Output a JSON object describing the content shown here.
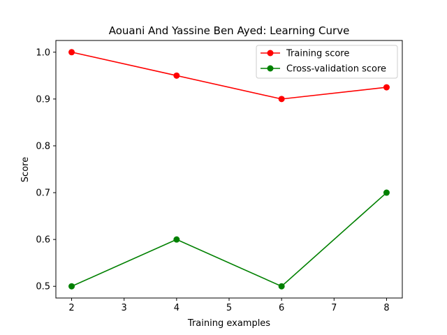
{
  "chart_data": {
    "type": "line",
    "title": "Aouani And Yassine Ben Ayed: Learning Curve",
    "xlabel": "Training examples",
    "ylabel": "Score",
    "xlim": [
      1.7,
      8.3
    ],
    "ylim": [
      0.475,
      1.025
    ],
    "xticks": [
      2,
      3,
      4,
      5,
      6,
      7,
      8
    ],
    "yticks": [
      0.5,
      0.6,
      0.7,
      0.8,
      0.9,
      1.0
    ],
    "ytick_labels": [
      "0.5",
      "0.6",
      "0.7",
      "0.8",
      "0.9",
      "1.0"
    ],
    "grid": false,
    "legend_position": "top-right",
    "series": [
      {
        "name": "Training score",
        "color": "#ff0000",
        "marker": "circle",
        "x": [
          2,
          4,
          6,
          8
        ],
        "y": [
          1.0,
          0.95,
          0.9,
          0.925
        ]
      },
      {
        "name": "Cross-validation score",
        "color": "#008000",
        "marker": "circle",
        "x": [
          2,
          4,
          6,
          8
        ],
        "y": [
          0.5,
          0.6,
          0.5,
          0.7
        ]
      }
    ]
  }
}
